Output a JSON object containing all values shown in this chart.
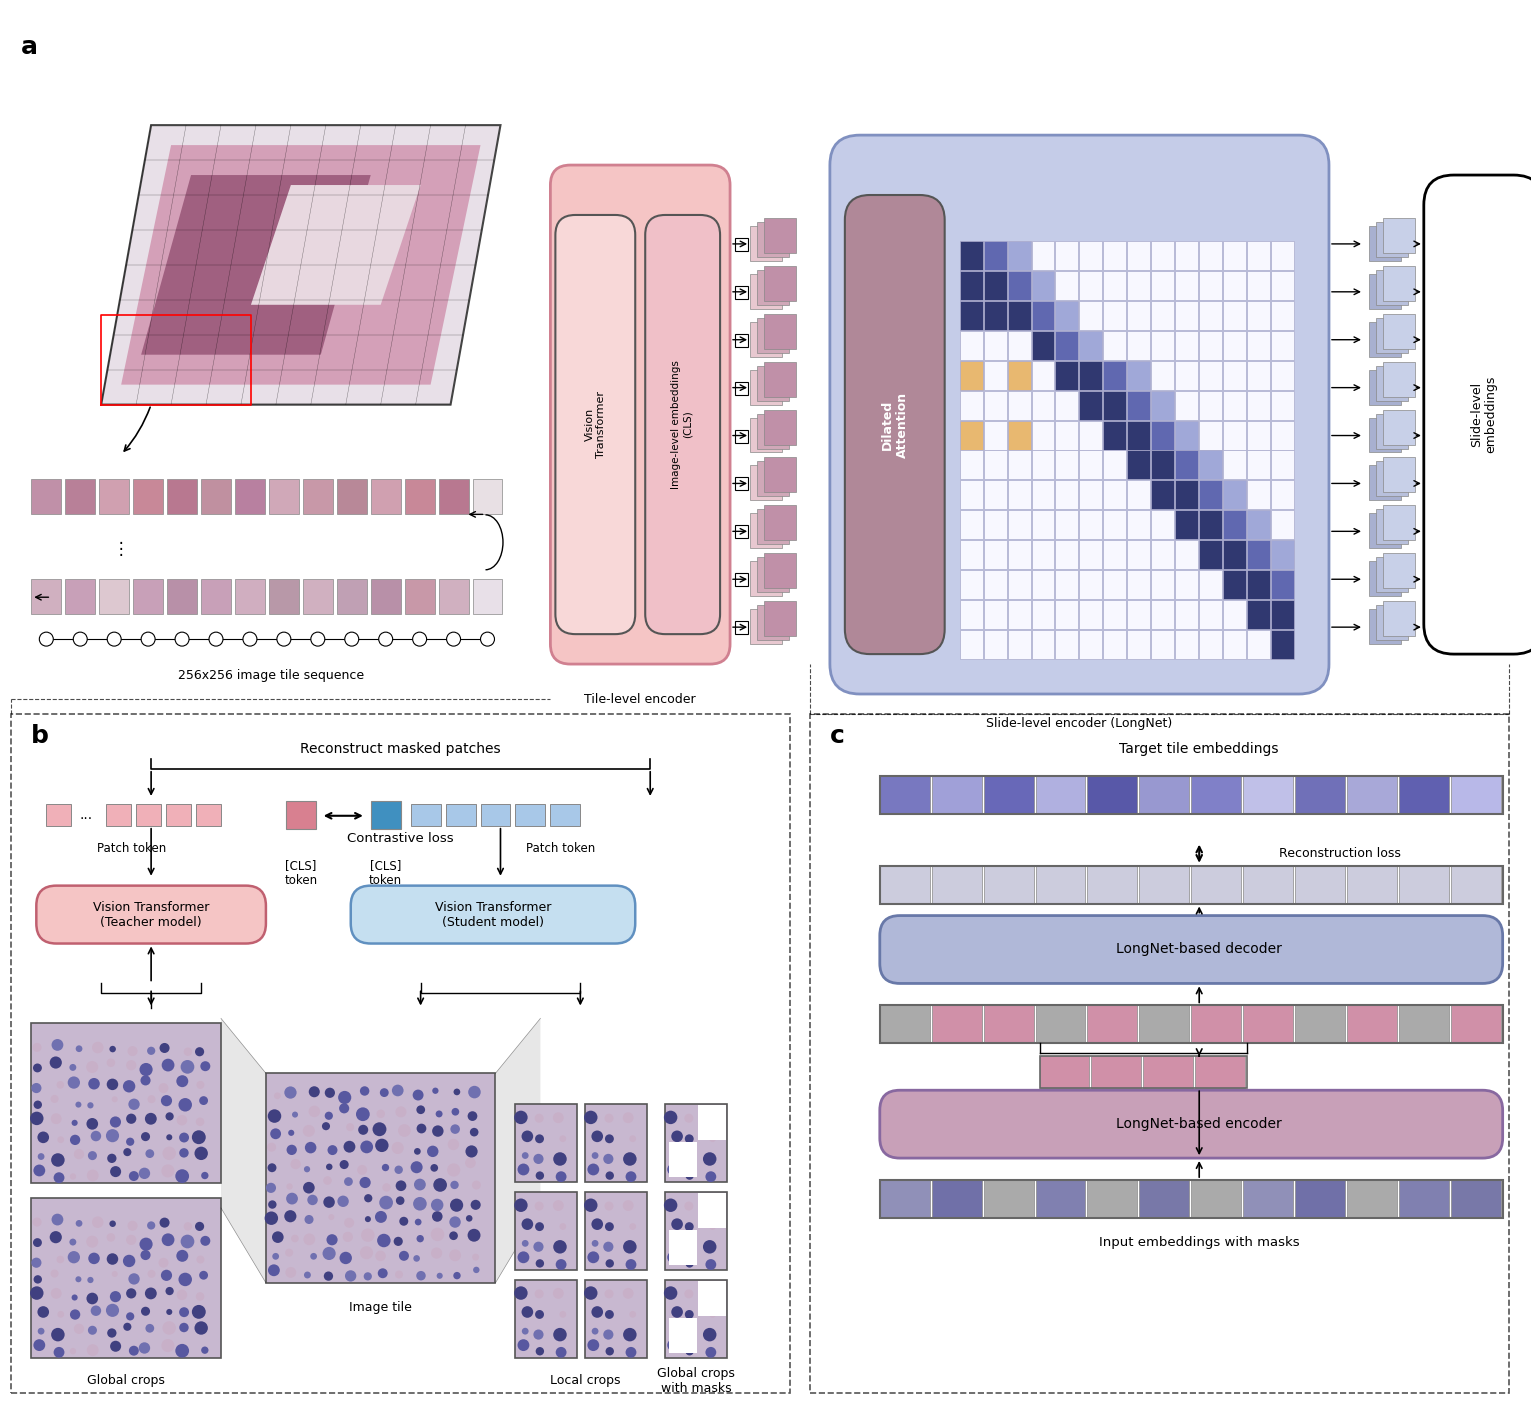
{
  "bg_color": "#ffffff",
  "panel_a": {
    "label": "a",
    "tile_seq_label": "256x256 image tile sequence",
    "tile_level_label": "Tile-level encoder",
    "slide_level_label": "Slide-level encoder (LongNet)",
    "slide_embeddings_label": "Slide-level\nembeddings",
    "vision_transformer_label": "Vision\nTransformer",
    "image_level_label": "Image-level embeddings\n(CLS)",
    "dilated_attention_label": "Dilated\nAttention",
    "tile_encoder_bg": "#f5c5c5",
    "slide_encoder_bg": "#c5cce8",
    "dilated_attention_color": "#b08898"
  },
  "panel_b": {
    "label": "b",
    "reconstruct_label": "Reconstruct masked patches",
    "contrastive_label": "Contrastive loss",
    "patch_token_label": "Patch token",
    "cls_token_label_left": "[CLS]\ntoken",
    "cls_token_label_right": "[CLS]\ntoken",
    "teacher_label": "Vision Transformer\n(Teacher model)",
    "student_label": "Vision Transformer\n(Student model)",
    "global_crops_label": "Global crops",
    "local_crops_label": "Local crops",
    "global_masks_label": "Global crops\nwith masks",
    "image_tile_label": "Image tile",
    "teacher_bg": "#f5c5c5",
    "student_bg": "#c5dff0",
    "patch_token_pink": "#f0b0b8",
    "patch_token_blue": "#a8c8e8",
    "cls_pink": "#d88090",
    "cls_blue": "#4090c0"
  },
  "panel_c": {
    "label": "c",
    "target_embeddings_label": "Target tile embeddings",
    "reconstruction_loss_label": "Reconstruction loss",
    "longnet_decoder_label": "LongNet-based decoder",
    "longnet_encoder_label": "LongNet-based encoder",
    "input_embeddings_label": "Input embeddings with masks",
    "decoder_bg": "#b0b8d8",
    "encoder_bg": "#c8a0b8",
    "target_bar_colors": [
      "#7878c0",
      "#a0a0d8",
      "#6868b8",
      "#b0b0e0",
      "#5858a8",
      "#9898d0",
      "#8080c8",
      "#c0c0e8",
      "#7070b8",
      "#a8a8d8",
      "#6060b0",
      "#b8b8e8"
    ]
  }
}
